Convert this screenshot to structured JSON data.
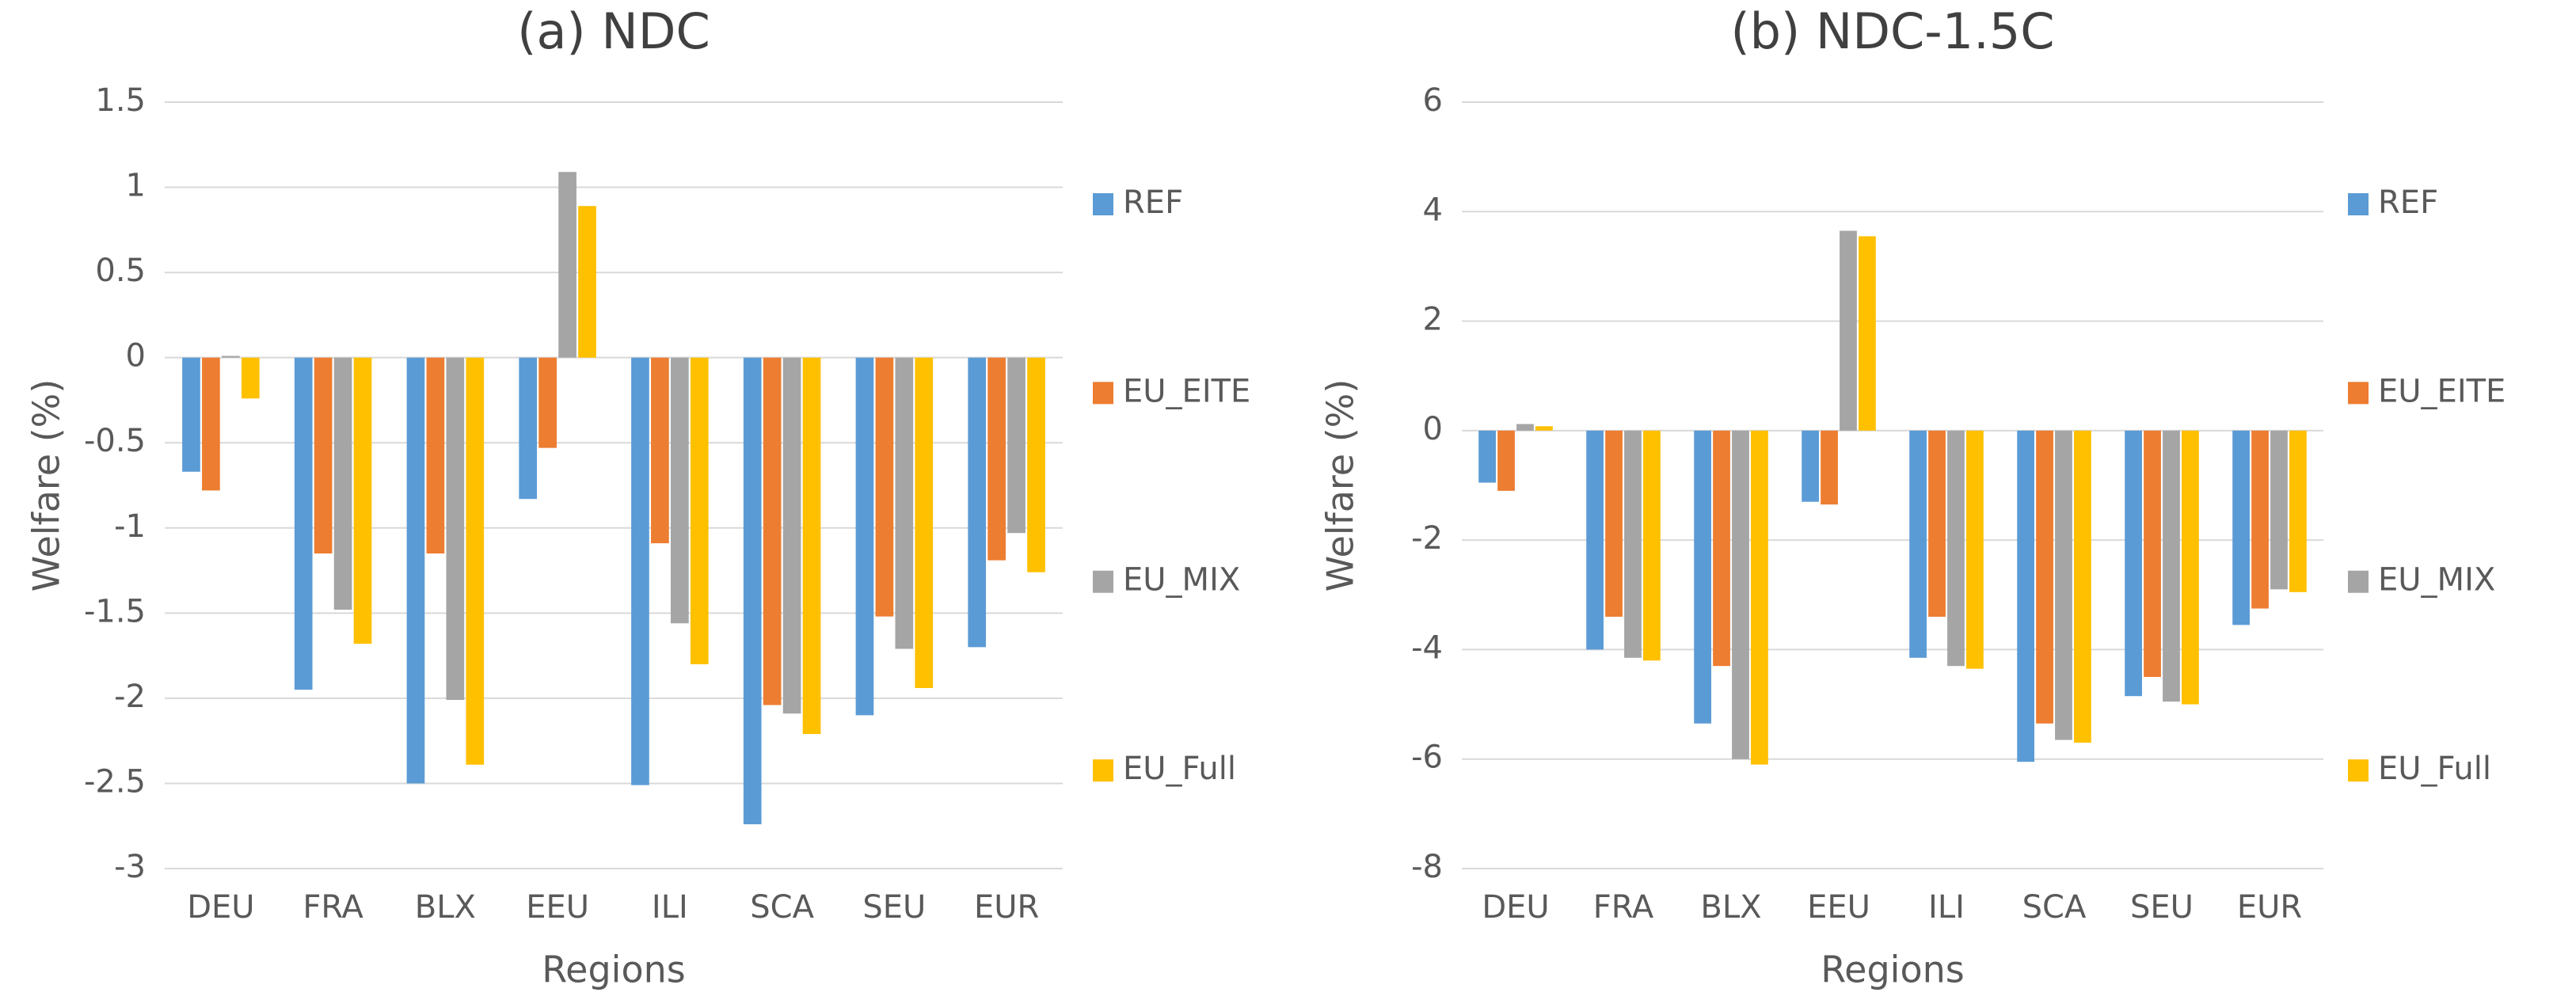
{
  "chart_data": [
    {
      "type": "bar",
      "title": "(a) NDC",
      "x_label": "Regions",
      "y_label": "Welfare (%)",
      "categories": [
        "DEU",
        "FRA",
        "BLX",
        "EEU",
        "ILI",
        "SCA",
        "SEU",
        "EUR"
      ],
      "series": [
        {
          "name": "REF",
          "color": "#5b9bd5",
          "values": [
            -0.67,
            -1.95,
            -2.5,
            -0.83,
            -2.51,
            -2.74,
            -2.1,
            -1.7
          ]
        },
        {
          "name": "EU_EITE",
          "color": "#ed7d31",
          "values": [
            -0.78,
            -1.15,
            -1.15,
            -0.53,
            -1.09,
            -2.04,
            -1.52,
            -1.19
          ]
        },
        {
          "name": "EU_MIX",
          "color": "#a5a5a5",
          "values": [
            0.01,
            -1.48,
            -2.01,
            1.09,
            -1.56,
            -2.09,
            -1.71,
            -1.03
          ]
        },
        {
          "name": "EU_Full",
          "color": "#ffc000",
          "values": [
            -0.24,
            -1.68,
            -2.39,
            0.89,
            -1.8,
            -2.21,
            -1.94,
            -1.26
          ]
        }
      ],
      "ylim": [
        -3,
        1.5
      ],
      "yticks": [
        -3,
        -2.5,
        -2,
        -1.5,
        -1,
        -0.5,
        0,
        0.5,
        1,
        1.5
      ],
      "grid": true,
      "legend": "right"
    },
    {
      "type": "bar",
      "title": "(b) NDC-1.5C",
      "x_label": "Regions",
      "y_label": "Welfare (%)",
      "categories": [
        "DEU",
        "FRA",
        "BLX",
        "EEU",
        "ILI",
        "SCA",
        "SEU",
        "EUR"
      ],
      "series": [
        {
          "name": "REF",
          "color": "#5b9bd5",
          "values": [
            -0.95,
            -4.0,
            -5.35,
            -1.3,
            -4.15,
            -6.05,
            -4.85,
            -3.55
          ]
        },
        {
          "name": "EU_EITE",
          "color": "#ed7d31",
          "values": [
            -1.1,
            -3.4,
            -4.3,
            -1.35,
            -3.4,
            -5.35,
            -4.5,
            -3.25
          ]
        },
        {
          "name": "EU_MIX",
          "color": "#a5a5a5",
          "values": [
            0.12,
            -4.15,
            -6.0,
            3.65,
            -4.3,
            -5.65,
            -4.95,
            -2.9
          ]
        },
        {
          "name": "EU_Full",
          "color": "#ffc000",
          "values": [
            0.08,
            -4.2,
            -6.1,
            3.55,
            -4.35,
            -5.7,
            -5.0,
            -2.95
          ]
        }
      ],
      "ylim": [
        -8,
        6
      ],
      "yticks": [
        -8,
        -6,
        -4,
        -2,
        0,
        2,
        4,
        6
      ],
      "grid": true,
      "legend": "right"
    }
  ]
}
